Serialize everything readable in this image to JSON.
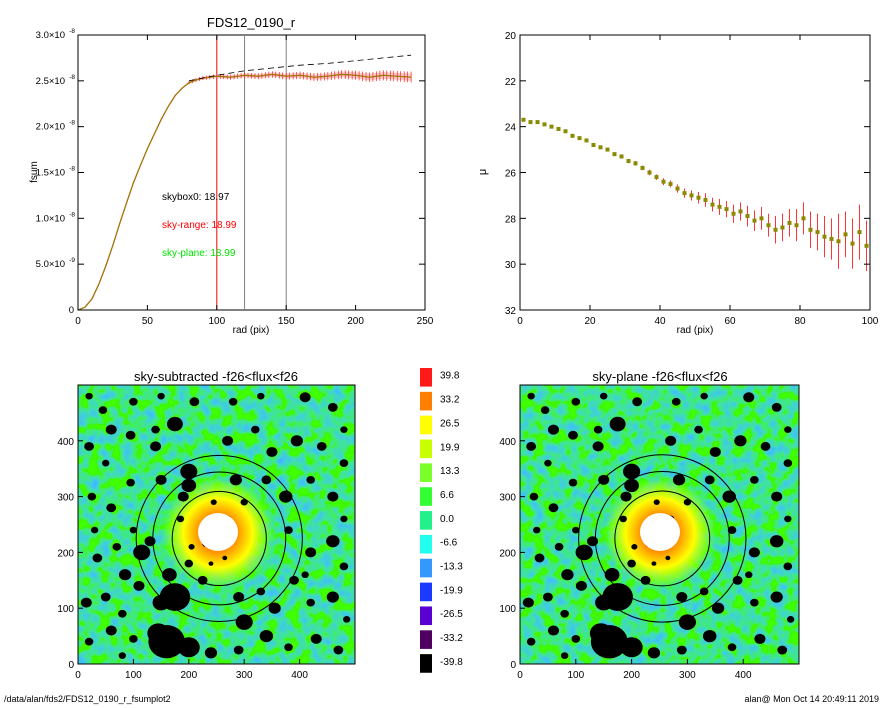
{
  "footer": {
    "path": "/data/alan/fds2/FDS12_0190_r_fsumplot2",
    "stamp": "alan@  Mon Oct 14 20:49:11 2019"
  },
  "colors": {
    "black": "#000000",
    "red": "#ff0000",
    "green": "#00e000",
    "olive": "#8a8a00",
    "gray": "#808080",
    "background": "#ffffff"
  },
  "chart_data": [
    {
      "type": "line",
      "title": "FDS12_0190_r",
      "xlabel": "rad (pix)",
      "ylabel": "fsum",
      "xlim": [
        0,
        250
      ],
      "ylim": [
        0,
        3e-08
      ],
      "xticks": [
        0,
        50,
        100,
        150,
        200,
        250
      ],
      "xtick_labels": [
        "0",
        "50",
        "100",
        "150",
        "200",
        "250"
      ],
      "yticks": [
        0,
        5e-09,
        1e-08,
        1.5e-08,
        2e-08,
        2.5e-08,
        3e-08
      ],
      "ytick_labels": [
        {
          "mant": "0",
          "exp": ""
        },
        {
          "mant": "5.0×10",
          "exp": "-9"
        },
        {
          "mant": "1.0×10",
          "exp": "-8"
        },
        {
          "mant": "1.5×10",
          "exp": "-8"
        },
        {
          "mant": "2.0×10",
          "exp": "-8"
        },
        {
          "mant": "2.5×10",
          "exp": "-8"
        },
        {
          "mant": "3.0×10",
          "exp": "-8"
        }
      ],
      "vlines": [
        {
          "x": 100,
          "color": "#ff0000"
        },
        {
          "x": 120,
          "color": "#808080"
        },
        {
          "x": 150,
          "color": "#808080"
        }
      ],
      "annotations": [
        {
          "text": "skybox0: 18.97",
          "color": "#000000"
        },
        {
          "text": "sky-range: 18.99",
          "color": "#ff0000"
        },
        {
          "text": "sky-plane: 18.99",
          "color": "#00e000"
        }
      ],
      "series": [
        {
          "style": "solid",
          "color": "#8a8a00",
          "x": [
            0,
            5,
            10,
            15,
            20,
            25,
            30,
            35,
            40,
            45,
            50,
            55,
            60,
            65,
            70,
            75,
            80,
            85,
            90,
            95,
            100,
            110,
            120,
            130,
            140,
            150,
            160,
            170,
            180,
            190,
            200,
            210,
            220,
            230,
            240
          ],
          "y": [
            0,
            3e-10,
            1.2e-09,
            2.8e-09,
            4.8e-09,
            7e-09,
            9.4e-09,
            1.17e-08,
            1.39e-08,
            1.58e-08,
            1.76e-08,
            1.92e-08,
            2.08e-08,
            2.22e-08,
            2.34e-08,
            2.42e-08,
            2.48e-08,
            2.51e-08,
            2.53e-08,
            2.54e-08,
            2.55e-08,
            2.54e-08,
            2.56e-08,
            2.55e-08,
            2.57e-08,
            2.55e-08,
            2.56e-08,
            2.54e-08,
            2.55e-08,
            2.57e-08,
            2.56e-08,
            2.54e-08,
            2.56e-08,
            2.55e-08,
            2.54e-08
          ]
        },
        {
          "style": "dashed",
          "color": "#000000",
          "x": [
            80,
            100,
            120,
            140,
            160,
            180,
            200,
            220,
            240
          ],
          "y": [
            2.5e-08,
            2.56e-08,
            2.61e-08,
            2.64e-08,
            2.67e-08,
            2.69e-08,
            2.72e-08,
            2.75e-08,
            2.78e-08
          ]
        }
      ]
    },
    {
      "type": "scatter",
      "xlabel": "rad (pix)",
      "ylabel": "μ",
      "xlim": [
        0,
        100
      ],
      "ylim": [
        32,
        20
      ],
      "xticks": [
        0,
        20,
        40,
        60,
        80,
        100
      ],
      "yticks": [
        20,
        22,
        24,
        26,
        28,
        30,
        32
      ],
      "color": "#8a8a00",
      "error_color": "#ff0000",
      "x": [
        1,
        3,
        5,
        7,
        9,
        11,
        13,
        15,
        17,
        19,
        21,
        23,
        25,
        27,
        29,
        31,
        33,
        35,
        37,
        39,
        41,
        43,
        45,
        47,
        49,
        51,
        53,
        55,
        57,
        59,
        61,
        63,
        65,
        67,
        69,
        71,
        73,
        75,
        77,
        79,
        81,
        83,
        85,
        87,
        89,
        91,
        93,
        95,
        97,
        99
      ],
      "y": [
        23.7,
        23.8,
        23.8,
        23.9,
        24.0,
        24.1,
        24.2,
        24.4,
        24.5,
        24.6,
        24.8,
        24.9,
        25.0,
        25.2,
        25.3,
        25.5,
        25.6,
        25.8,
        26.0,
        26.2,
        26.4,
        26.5,
        26.7,
        26.9,
        27.0,
        27.1,
        27.2,
        27.4,
        27.5,
        27.6,
        27.8,
        27.7,
        27.9,
        28.1,
        28.0,
        28.3,
        28.5,
        28.4,
        28.2,
        28.3,
        28.0,
        28.5,
        28.6,
        28.8,
        28.9,
        29.0,
        28.7,
        29.1,
        28.6,
        29.2
      ],
      "err": [
        0.05,
        0.05,
        0.05,
        0.05,
        0.05,
        0.05,
        0.05,
        0.06,
        0.06,
        0.06,
        0.07,
        0.07,
        0.08,
        0.08,
        0.08,
        0.09,
        0.1,
        0.1,
        0.12,
        0.12,
        0.15,
        0.15,
        0.18,
        0.2,
        0.22,
        0.25,
        0.3,
        0.3,
        0.35,
        0.35,
        0.4,
        0.4,
        0.45,
        0.45,
        0.5,
        0.5,
        0.6,
        0.6,
        0.6,
        0.7,
        0.7,
        0.8,
        0.8,
        0.9,
        0.9,
        1.2,
        1.0,
        1.1,
        1.2,
        1.1
      ]
    },
    {
      "type": "heatmap",
      "title": "sky-subtracted -f26<flux<f26",
      "xlim": [
        0,
        500
      ],
      "ylim": [
        0,
        500
      ],
      "xticks": [
        0,
        100,
        200,
        300,
        400
      ],
      "yticks": [
        0,
        100,
        200,
        300,
        400
      ],
      "circles": [
        {
          "cx": 255,
          "cy": 225,
          "r": 85
        },
        {
          "cx": 255,
          "cy": 225,
          "r": 120
        },
        {
          "cx": 255,
          "cy": 225,
          "r": 150
        }
      ]
    },
    {
      "type": "heatmap",
      "title": "sky-plane -f26<flux<f26",
      "xlim": [
        0,
        500
      ],
      "ylim": [
        0,
        500
      ],
      "xticks": [
        0,
        100,
        200,
        300,
        400
      ],
      "yticks": [
        0,
        100,
        200,
        300,
        400
      ],
      "circles": [
        {
          "cx": 255,
          "cy": 225,
          "r": 85
        },
        {
          "cx": 255,
          "cy": 225,
          "r": 120
        },
        {
          "cx": 255,
          "cy": 225,
          "r": 150
        }
      ]
    }
  ],
  "colorbar": {
    "levels": [
      "39.8",
      "33.2",
      "26.5",
      "19.9",
      "13.3",
      "6.6",
      "0.0",
      "-6.6",
      "-13.3",
      "-19.9",
      "-26.5",
      "-33.2",
      "-39.8"
    ],
    "colors": [
      "#ff1a1a",
      "#ff8000",
      "#ffff00",
      "#c8ff00",
      "#7aff2a",
      "#33ff33",
      "#22f08a",
      "#22ffee",
      "#3399ff",
      "#1a3aff",
      "#5a00d0",
      "#500060",
      "#000000"
    ]
  }
}
